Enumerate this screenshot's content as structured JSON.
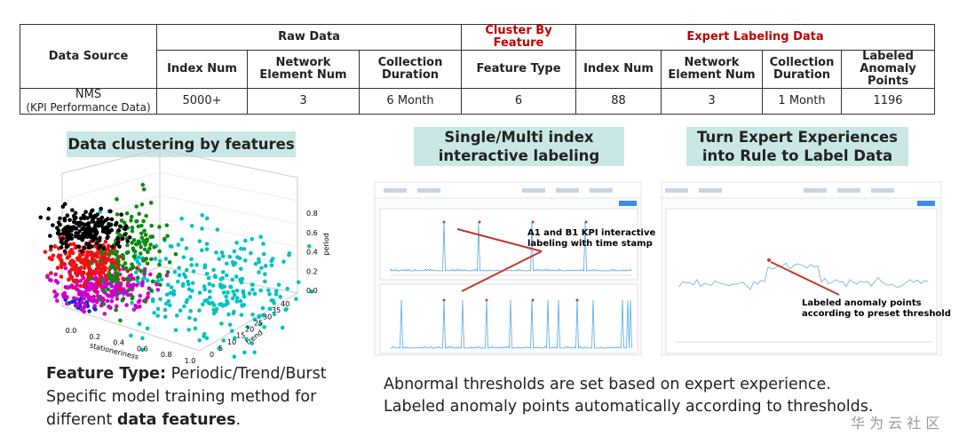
{
  "table": {
    "header_row1": {
      "data_source": "Data Source",
      "raw_data": "Raw Data",
      "cluster_by_feature": "Cluster By Feature",
      "expert_labeling_data": "Expert Labeling Data"
    },
    "header_row2": [
      "Index Num",
      "Network Element Num",
      "Collection Duration",
      "Feature Type",
      "Index Num",
      "Network Element Num",
      "Collection Duration",
      "Labeled Anomaly Points"
    ],
    "data_source": [
      "NMS",
      "(KPI Performance Data)"
    ],
    "values": [
      "5000+",
      3,
      "6 Month",
      6,
      88,
      3,
      "1 Month",
      1196
    ]
  },
  "panels": [
    {
      "title": [
        "Data clustering by features"
      ],
      "plot": {
        "x_label": "stationeriness",
        "y_label": "trend",
        "z_label": "period",
        "x_ticks": [
          "0.0",
          "0.2",
          "0.4",
          "0.6",
          "0.8",
          "1.0"
        ],
        "y_ticks": [
          "0",
          "5",
          "10",
          "15",
          "20",
          "25",
          "30",
          "35",
          "40"
        ],
        "z_ticks": [
          "0.0",
          "0.2",
          "0.4",
          "0.6",
          "0.8"
        ]
      }
    },
    {
      "title": [
        "Single/Multi index",
        "interactive labeling"
      ],
      "annotation": [
        "A1 and B1 KPI interactive",
        "labeling with time stamp"
      ]
    },
    {
      "title": [
        "Turn Expert Experiences",
        "into Rule to Label Data"
      ],
      "annotation": [
        "Labeled anomaly points",
        "according to preset threshold"
      ]
    }
  ],
  "captions": {
    "left": {
      "line1": {
        "bold": "Feature Type:",
        "text": "Periodic/Trend/Burst"
      },
      "line2": "Specific model training method for",
      "line3": {
        "before": "different",
        "bold": "data features",
        "after": "."
      }
    },
    "right": [
      "Abnormal thresholds are set based on expert experience.",
      "Labeled anomaly points automatically according to thresholds."
    ]
  },
  "watermark": "华 为 云 社 区"
}
